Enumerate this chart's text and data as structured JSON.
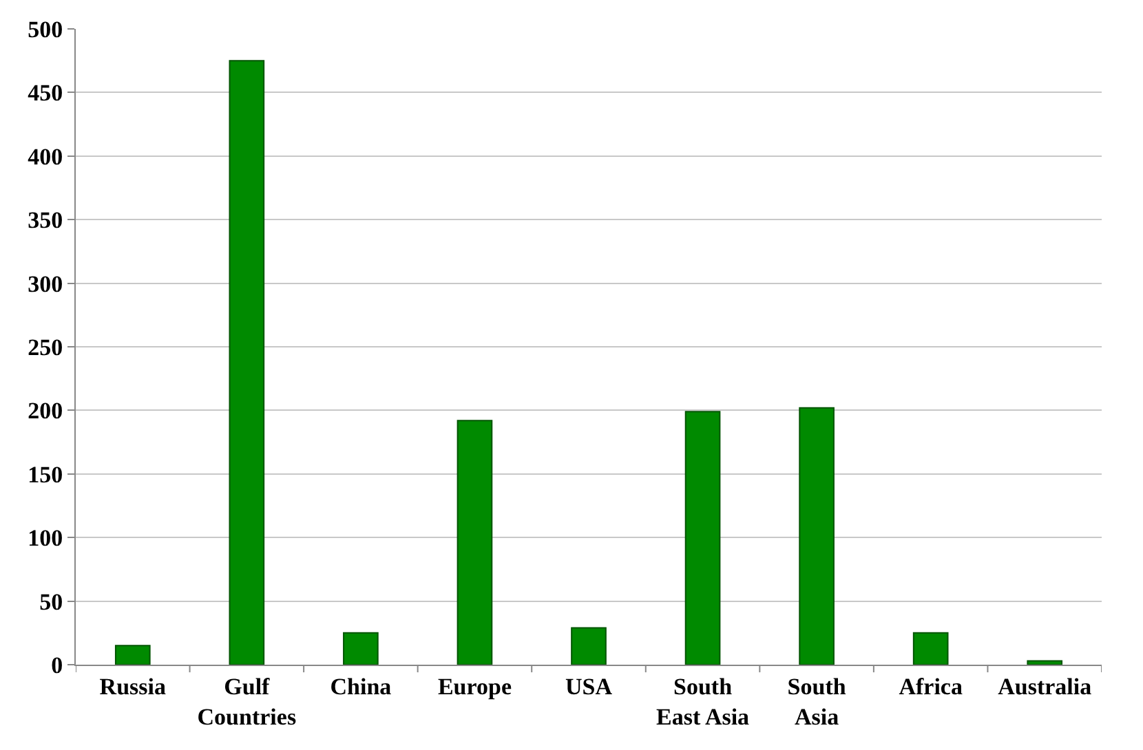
{
  "chart_data": {
    "type": "bar",
    "categories": [
      "Russia",
      "Gulf\nCountries",
      "China",
      "Europe",
      "USA",
      "South\nEast Asia",
      "South\nAsia",
      "Africa",
      "Australia"
    ],
    "values": [
      15,
      475,
      25,
      192,
      29,
      199,
      202,
      25,
      3
    ],
    "color": "#008a00",
    "ylim": [
      0,
      500
    ],
    "yticks": [
      0,
      50,
      100,
      150,
      200,
      250,
      300,
      350,
      400,
      450,
      500
    ],
    "grid": "y"
  }
}
